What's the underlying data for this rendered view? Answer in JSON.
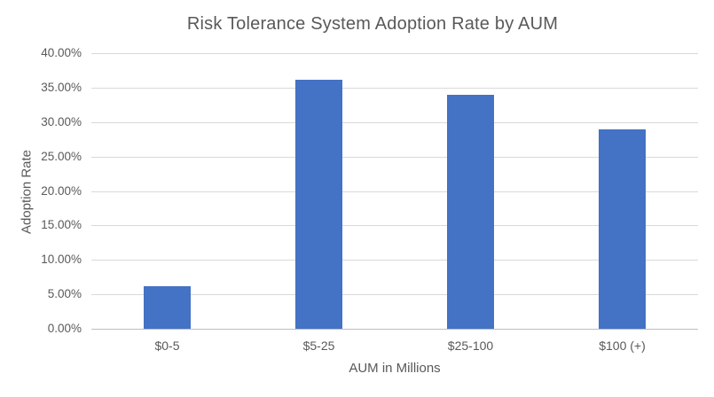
{
  "chart_data": {
    "type": "bar",
    "title": "Risk Tolerance System Adoption Rate by AUM",
    "xlabel": "AUM in Millions",
    "ylabel": "Adoption Rate",
    "categories": [
      "$0-5",
      "$5-25",
      "$25-100",
      "$100 (+)"
    ],
    "values": [
      6.2,
      36.2,
      34.0,
      29.0
    ],
    "value_unit": "percent",
    "ylim": [
      0,
      40
    ],
    "y_tick_step": 5,
    "y_tick_labels": [
      "0.00%",
      "5.00%",
      "10.00%",
      "15.00%",
      "20.00%",
      "25.00%",
      "30.00%",
      "35.00%",
      "40.00%"
    ],
    "grid": "horizontal",
    "legend_position": "none",
    "colors": {
      "bar": "#4472C4",
      "gridline": "#D9D9D9",
      "axis_line": "#BFBFBF",
      "text": "#595959",
      "background": "#FFFFFF"
    }
  }
}
